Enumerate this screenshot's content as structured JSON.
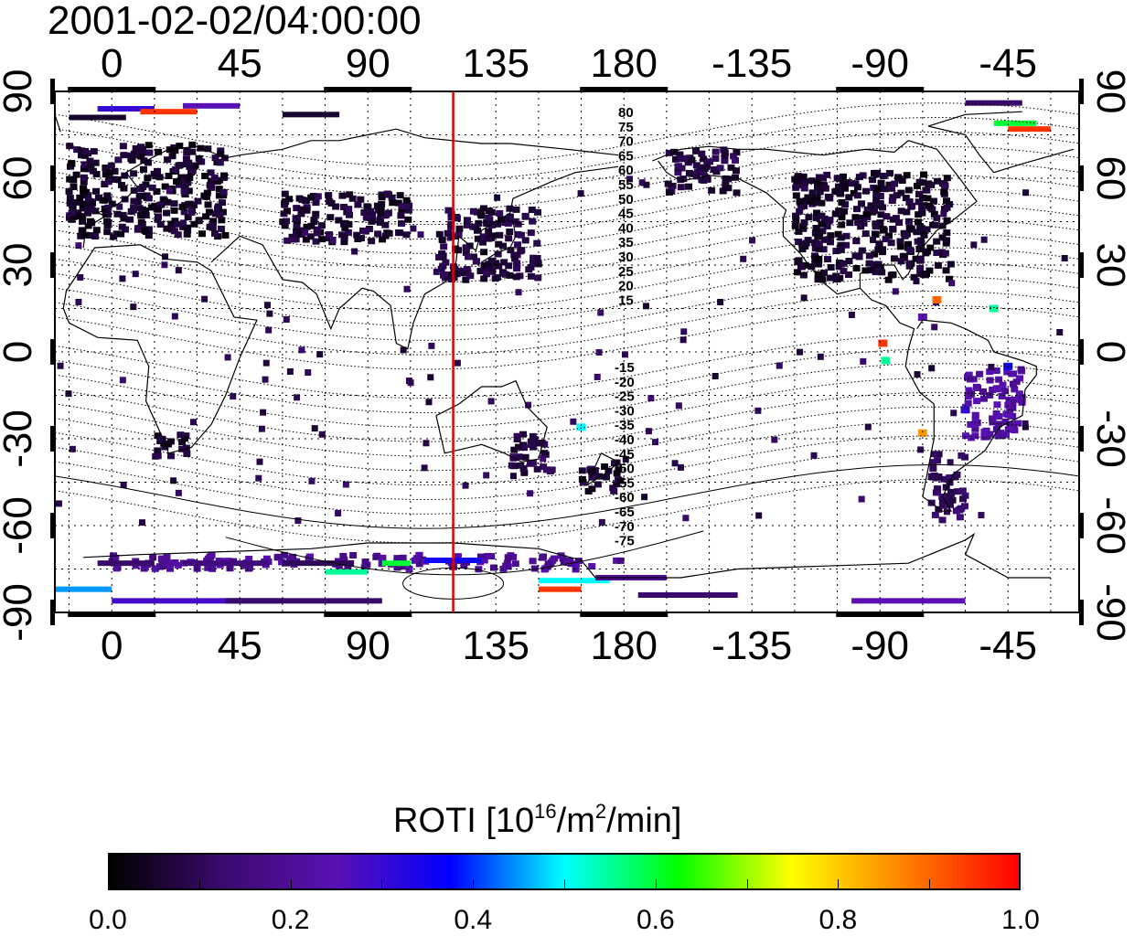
{
  "timestamp": "2001-02-02/04:00:00",
  "chart_data": {
    "type": "heatmap",
    "title": "2001-02-02/04:00:00",
    "x_ticks_top": [
      "0",
      "45",
      "90",
      "135",
      "180",
      "-135",
      "-90",
      "-45"
    ],
    "x_ticks_bottom": [
      "0",
      "45",
      "90",
      "135",
      "180",
      "-135",
      "-90",
      "-45"
    ],
    "y_ticks_left": [
      "90",
      "60",
      "30",
      "0",
      "-30",
      "-60",
      "-90"
    ],
    "y_ticks_right": [
      "90",
      "60",
      "30",
      "0",
      "-30",
      "-60",
      "-90"
    ],
    "longitude_range": [
      -20,
      340
    ],
    "latitude_range": [
      -90,
      90
    ],
    "grid": true,
    "terminator_longitude": 120,
    "magnetic_latitude_labels_north": [
      "80",
      "75",
      "70",
      "65",
      "60",
      "55",
      "50",
      "45",
      "40",
      "35",
      "30",
      "25",
      "20",
      "15"
    ],
    "magnetic_latitude_labels_south": [
      "-15",
      "-20",
      "-25",
      "-30",
      "-35",
      "-40",
      "-45",
      "-50",
      "-55",
      "-60",
      "-65",
      "-70",
      "-75"
    ],
    "colorbar": {
      "title_prefix": "ROTI  [10",
      "title_sup1": "16",
      "title_mid": "/m",
      "title_sup2": "2",
      "title_suffix": "/min]",
      "range": [
        0.0,
        1.0
      ],
      "tick_labels": [
        "0.0",
        "0.2",
        "0.4",
        "0.6",
        "0.8",
        "1.0"
      ],
      "colormap": [
        "#000000",
        "#3b0a6e",
        "#5a10b4",
        "#0000ff",
        "#00ffff",
        "#00ff00",
        "#ffff00",
        "#ff8000",
        "#ff0000"
      ]
    },
    "roti_regions": [
      {
        "name": "europe",
        "lon": [
          -15,
          40
        ],
        "lat": [
          40,
          72
        ],
        "value": 0.05
      },
      {
        "name": "central-asia",
        "lon": [
          60,
          105
        ],
        "lat": [
          38,
          55
        ],
        "value": 0.06
      },
      {
        "name": "east-asia",
        "lon": [
          115,
          150
        ],
        "lat": [
          25,
          50
        ],
        "value": 0.07
      },
      {
        "name": "north-america",
        "lon": [
          -120,
          -65
        ],
        "lat": [
          25,
          62
        ],
        "value": 0.05
      },
      {
        "name": "alaska",
        "lon": [
          -165,
          -140
        ],
        "lat": [
          55,
          70
        ],
        "value": 0.08
      },
      {
        "name": "southern-africa",
        "lon": [
          15,
          30
        ],
        "lat": [
          -36,
          -28
        ],
        "value": 0.06
      },
      {
        "name": "australia-east",
        "lon": [
          140,
          155
        ],
        "lat": [
          -42,
          -28
        ],
        "value": 0.08
      },
      {
        "name": "new-zealand",
        "lon": [
          165,
          180
        ],
        "lat": [
          -48,
          -38
        ],
        "value": 0.06
      },
      {
        "name": "south-america-east",
        "lon": [
          -60,
          -40
        ],
        "lat": [
          -30,
          -5
        ],
        "value": 0.22
      },
      {
        "name": "patagonia",
        "lon": [
          -72,
          -60
        ],
        "lat": [
          -58,
          -35
        ],
        "value": 0.1
      },
      {
        "name": "antarctic-coast",
        "lon": [
          0,
          180
        ],
        "lat": [
          -75,
          -70
        ],
        "value": 0.2
      }
    ]
  }
}
